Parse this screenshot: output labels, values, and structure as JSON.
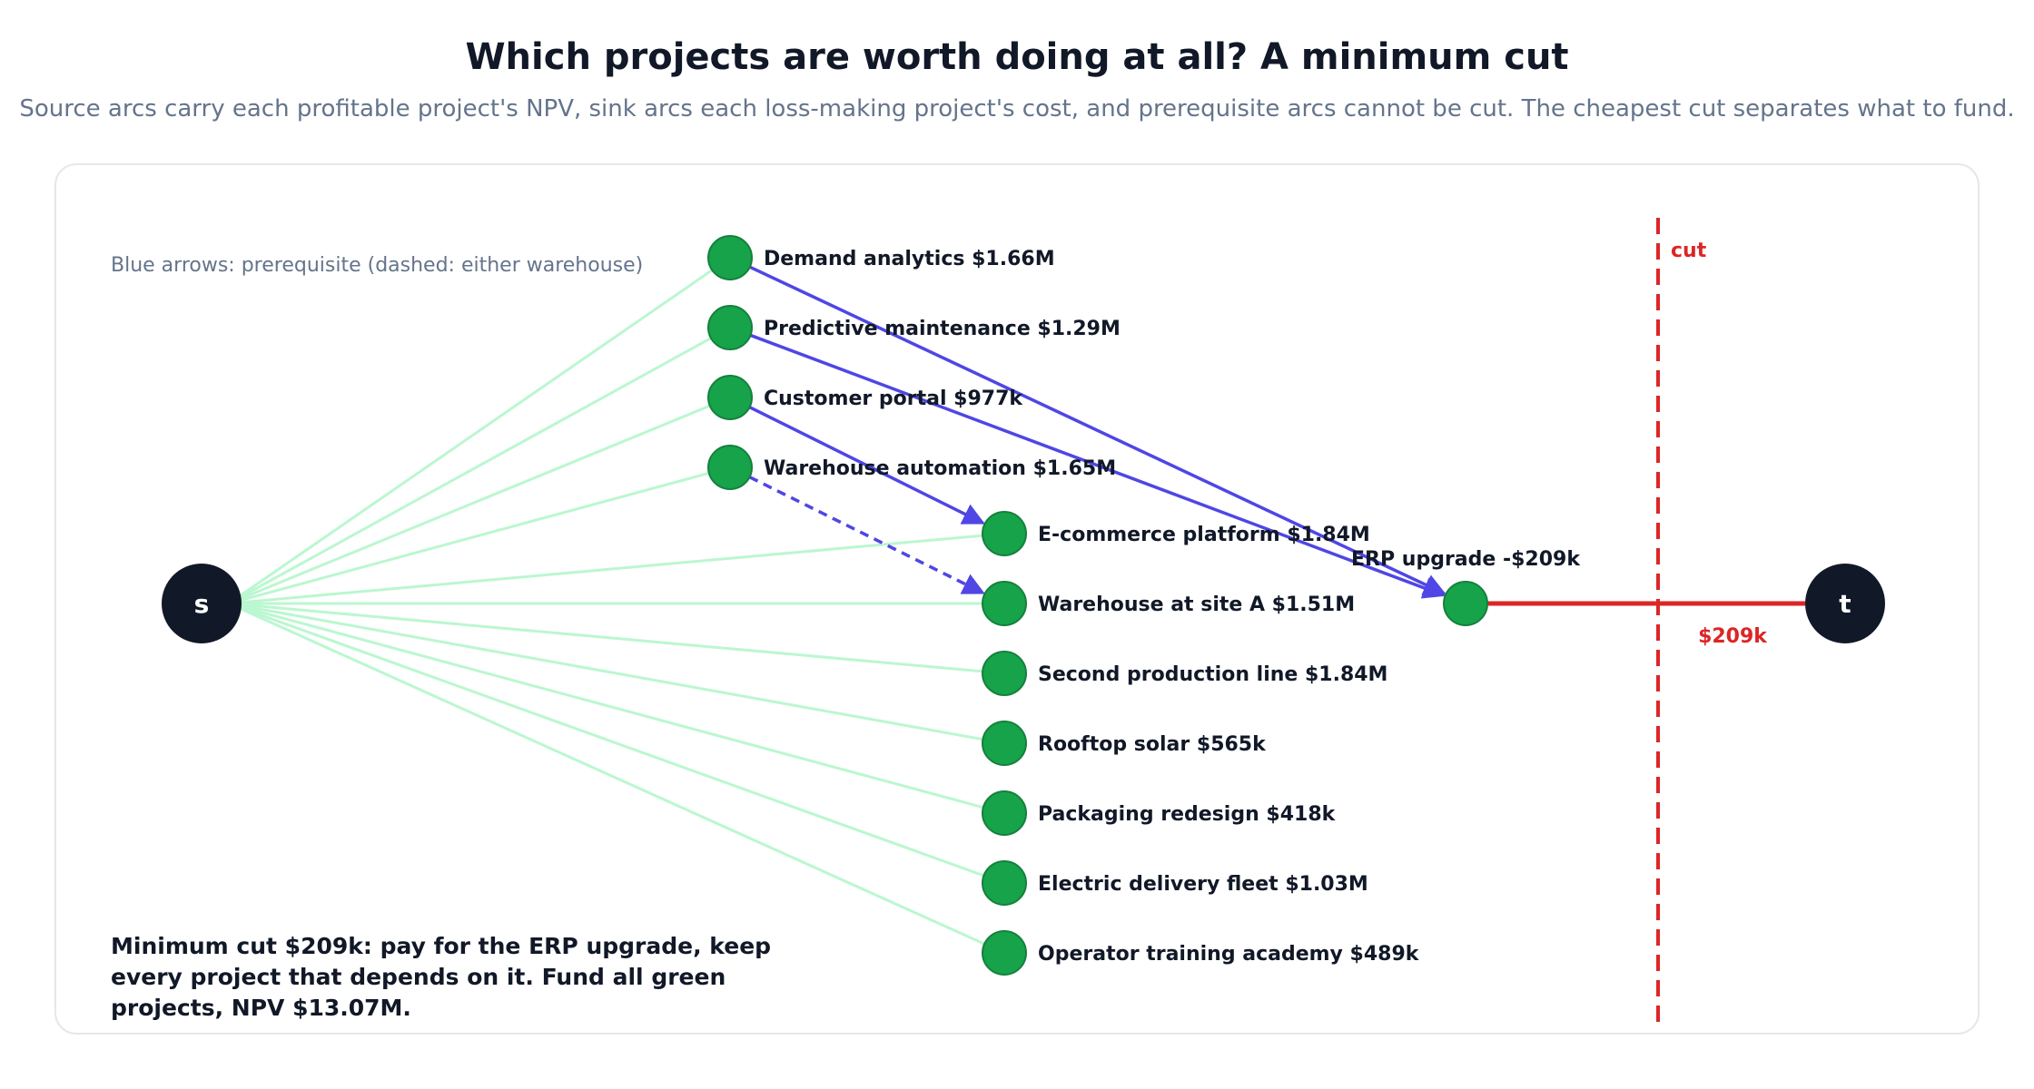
{
  "title": "Which projects are worth doing at all? A minimum cut",
  "subtitle": "Source arcs carry each profitable project's NPV, sink arcs each loss-making project's cost, and prerequisite arcs cannot be cut. The cheapest cut separates what to fund.",
  "legend_note": "Blue arrows: prerequisite (dashed: either warehouse)",
  "source_label": "s",
  "sink_label": "t",
  "colors": {
    "source_arc": "#bbf7d0",
    "node_fill": "#16a34a",
    "node_stroke": "#15803d",
    "terminal": "#111827",
    "prereq": "#4f46e5",
    "cut": "#dc2626"
  },
  "projects": [
    {
      "id": "demand",
      "name": "Demand analytics",
      "value": "$1.66M"
    },
    {
      "id": "predictive",
      "name": "Predictive maintenance",
      "value": "$1.29M"
    },
    {
      "id": "portal",
      "name": "Customer portal",
      "value": "$977k"
    },
    {
      "id": "warehouse_auto",
      "name": "Warehouse automation",
      "value": "$1.65M"
    },
    {
      "id": "ecommerce",
      "name": "E-commerce platform",
      "value": "$1.84M"
    },
    {
      "id": "warehouse_a",
      "name": "Warehouse at site A",
      "value": "$1.51M"
    },
    {
      "id": "production",
      "name": "Second production line",
      "value": "$1.84M"
    },
    {
      "id": "solar",
      "name": "Rooftop solar",
      "value": "$565k"
    },
    {
      "id": "packaging",
      "name": "Packaging redesign",
      "value": "$418k"
    },
    {
      "id": "fleet",
      "name": "Electric delivery fleet",
      "value": "$1.03M"
    },
    {
      "id": "training",
      "name": "Operator training academy",
      "value": "$489k"
    }
  ],
  "loss_project": {
    "id": "erp",
    "name": "ERP upgrade",
    "value": "-$209k"
  },
  "prerequisites": [
    {
      "from": "demand",
      "to": "erp",
      "dashed": false
    },
    {
      "from": "predictive",
      "to": "erp",
      "dashed": false
    },
    {
      "from": "portal",
      "to": "ecommerce",
      "dashed": false
    },
    {
      "from": "warehouse_auto",
      "to": "warehouse_a",
      "dashed": true
    }
  ],
  "cut": {
    "label": "cut",
    "sink_arc_value": "$209k"
  },
  "summary": {
    "lines": [
      "Minimum cut $209k: pay for the ERP upgrade, keep",
      "every project that depends on it. Fund all green",
      "projects, NPV $13.07M."
    ]
  }
}
